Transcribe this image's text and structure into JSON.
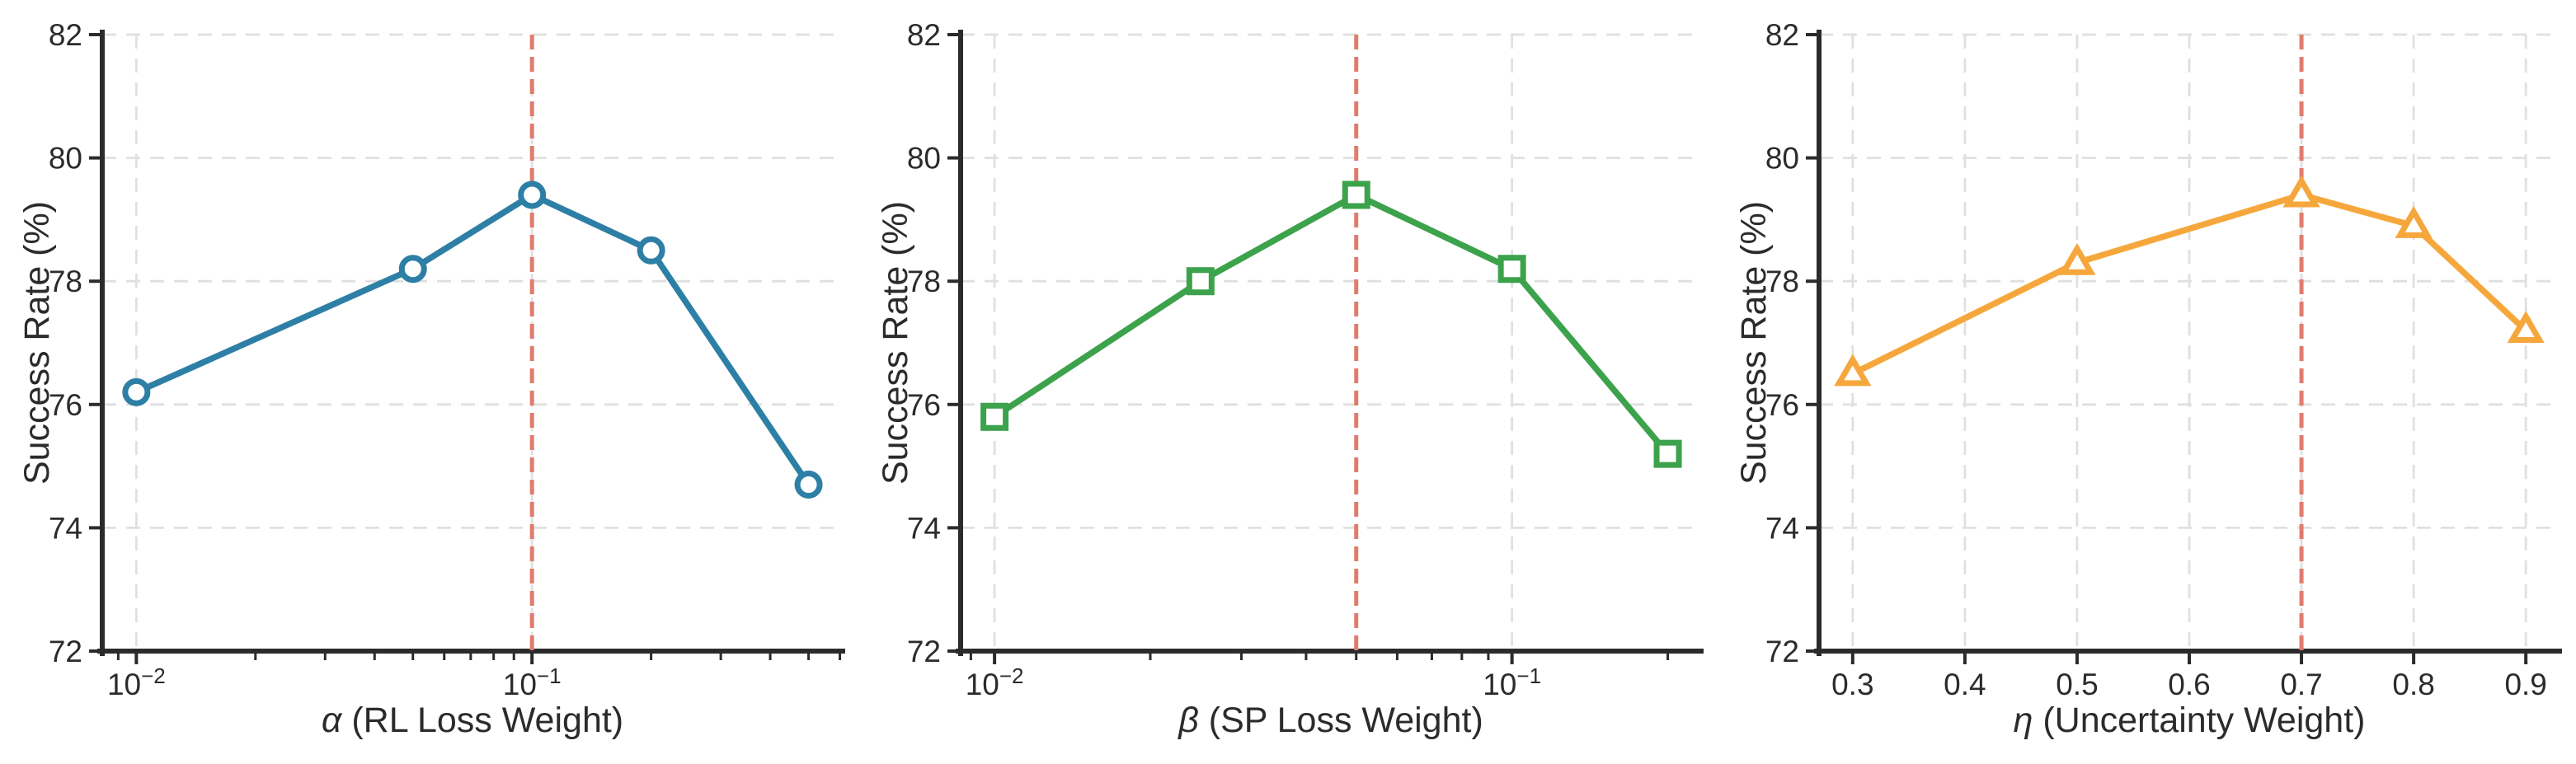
{
  "figure": {
    "background": "#ffffff",
    "axis_color": "#2b2b2b",
    "grid_color": "#e0e0e0",
    "marker_fill": "#ffffff",
    "ylabel": "Success Rate (%)"
  },
  "chart_data": [
    {
      "id": "alpha",
      "type": "line",
      "series_name": "alpha-sensitivity",
      "xscale": "log",
      "xlabel_symbol": "α",
      "xlabel_rest": " (RL Loss Weight)",
      "ylabel": "Success Rate (%)",
      "x": [
        0.01,
        0.05,
        0.1,
        0.2,
        0.5
      ],
      "y": [
        76.2,
        78.2,
        79.4,
        78.5,
        74.7
      ],
      "xlim": [
        0.0082,
        0.61
      ],
      "ylim": [
        72,
        82
      ],
      "yticks": [
        72,
        74,
        76,
        78,
        80,
        82
      ],
      "xticks": [
        {
          "value": 0.01,
          "label": "10^−2"
        },
        {
          "value": 0.1,
          "label": "10^−1"
        }
      ],
      "vline": {
        "x": 0.1,
        "color": "#e07c6e",
        "style": "dashed"
      },
      "marker": "circle",
      "color": "#2e7fa5",
      "grid": true,
      "legend": null
    },
    {
      "id": "beta",
      "type": "line",
      "series_name": "beta-sensitivity",
      "xscale": "log",
      "xlabel_symbol": "β",
      "xlabel_rest": " (SP Loss Weight)",
      "ylabel": "Success Rate (%)",
      "x": [
        0.01,
        0.025,
        0.05,
        0.1,
        0.2
      ],
      "y": [
        75.8,
        78.0,
        79.4,
        78.2,
        75.2
      ],
      "xlim": [
        0.0086,
        0.232
      ],
      "ylim": [
        72,
        82
      ],
      "yticks": [
        72,
        74,
        76,
        78,
        80,
        82
      ],
      "xticks": [
        {
          "value": 0.01,
          "label": "10^−2"
        },
        {
          "value": 0.1,
          "label": "10^−1"
        }
      ],
      "vline": {
        "x": 0.05,
        "color": "#e07c6e",
        "style": "dashed"
      },
      "marker": "square",
      "color": "#3ca24b",
      "grid": true,
      "legend": null
    },
    {
      "id": "eta",
      "type": "line",
      "series_name": "eta-sensitivity",
      "xscale": "linear",
      "xlabel_symbol": "η",
      "xlabel_rest": " (Uncertainty Weight)",
      "ylabel": "Success Rate (%)",
      "x": [
        0.3,
        0.5,
        0.7,
        0.8,
        0.9
      ],
      "y": [
        76.5,
        78.3,
        79.4,
        78.9,
        77.2
      ],
      "xlim": [
        0.27,
        0.93
      ],
      "ylim": [
        72,
        82
      ],
      "yticks": [
        72,
        74,
        76,
        78,
        80,
        82
      ],
      "xticks": [
        {
          "value": 0.3,
          "label": "0.3"
        },
        {
          "value": 0.4,
          "label": "0.4"
        },
        {
          "value": 0.5,
          "label": "0.5"
        },
        {
          "value": 0.6,
          "label": "0.6"
        },
        {
          "value": 0.7,
          "label": "0.7"
        },
        {
          "value": 0.8,
          "label": "0.8"
        },
        {
          "value": 0.9,
          "label": "0.9"
        }
      ],
      "vline": {
        "x": 0.7,
        "color": "#e07c6e",
        "style": "dashed"
      },
      "marker": "triangle",
      "color": "#f6a73c",
      "grid": true,
      "legend": null
    }
  ]
}
